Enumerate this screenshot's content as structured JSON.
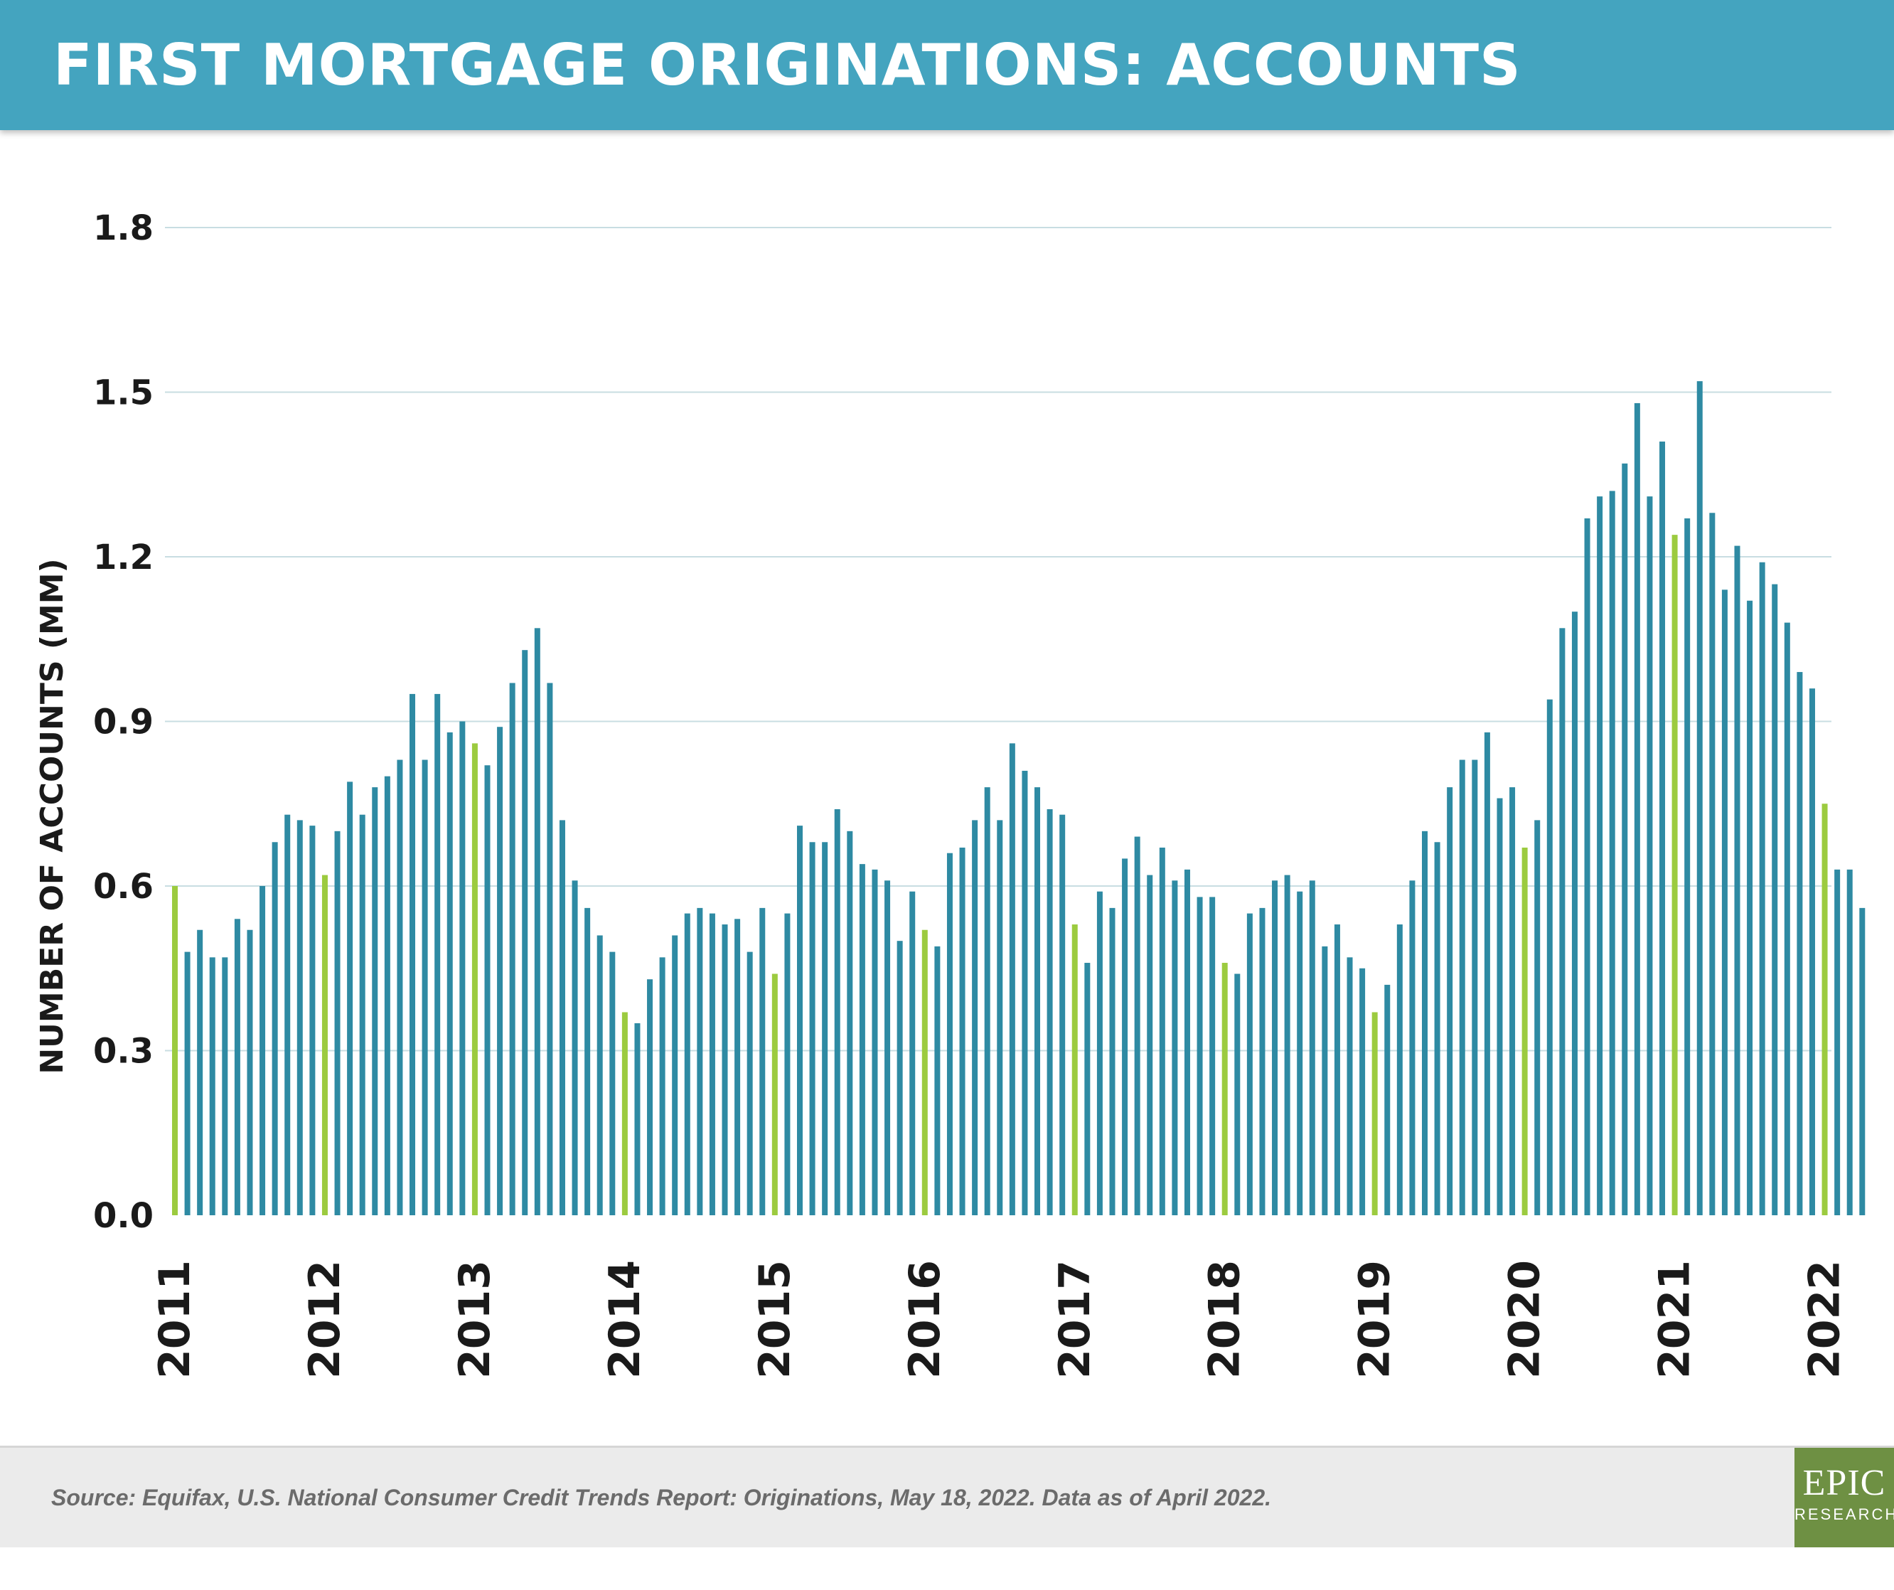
{
  "header": {
    "title": "FIRST MORTGAGE ORIGINATIONS: ACCOUNTS"
  },
  "footer": {
    "source": "Source: Equifax, U.S. National Consumer Credit Trends Report: Originations, May 18, 2022. Data as of April 2022.",
    "logo_main": "EPIC",
    "logo_sub": "RESEARCH"
  },
  "colors": {
    "header": "#44a4bf",
    "bar": "#2e8aa3",
    "highlight": "#9ccb3f",
    "grid": "#c8dde2",
    "logo": "#6e9043"
  },
  "chart_data": {
    "type": "bar",
    "title": "FIRST MORTGAGE ORIGINATIONS: ACCOUNTS",
    "xlabel": "",
    "ylabel": "NUMBER OF ACCOUNTS (MM)",
    "ylim": [
      0,
      1.8
    ],
    "yticks": [
      "0.0",
      "0.3",
      "0.6",
      "0.9",
      "1.2",
      "1.5",
      "1.8"
    ],
    "xticks": [
      "2011",
      "2012",
      "2013",
      "2014",
      "2015",
      "2016",
      "2017",
      "2018",
      "2019",
      "2020",
      "2021",
      "2022"
    ],
    "grid": true,
    "start": "2011-01",
    "end": "2022-04",
    "frequency": "monthly",
    "highlight": "January bars shown in green",
    "values": [
      0.6,
      0.48,
      0.52,
      0.47,
      0.47,
      0.54,
      0.52,
      0.6,
      0.68,
      0.73,
      0.72,
      0.71,
      0.62,
      0.7,
      0.79,
      0.73,
      0.78,
      0.8,
      0.83,
      0.95,
      0.83,
      0.95,
      0.88,
      0.9,
      0.86,
      0.82,
      0.89,
      0.97,
      1.03,
      1.07,
      0.97,
      0.72,
      0.61,
      0.56,
      0.51,
      0.48,
      0.37,
      0.35,
      0.43,
      0.47,
      0.51,
      0.55,
      0.56,
      0.55,
      0.53,
      0.54,
      0.48,
      0.56,
      0.44,
      0.55,
      0.71,
      0.68,
      0.68,
      0.74,
      0.7,
      0.64,
      0.63,
      0.61,
      0.5,
      0.59,
      0.52,
      0.49,
      0.66,
      0.67,
      0.72,
      0.78,
      0.72,
      0.86,
      0.81,
      0.78,
      0.74,
      0.73,
      0.53,
      0.46,
      0.59,
      0.56,
      0.65,
      0.69,
      0.62,
      0.67,
      0.61,
      0.63,
      0.58,
      0.58,
      0.46,
      0.44,
      0.55,
      0.56,
      0.61,
      0.62,
      0.59,
      0.61,
      0.49,
      0.53,
      0.47,
      0.45,
      0.37,
      0.42,
      0.53,
      0.61,
      0.7,
      0.68,
      0.78,
      0.83,
      0.83,
      0.88,
      0.76,
      0.78,
      0.67,
      0.72,
      0.94,
      1.07,
      1.1,
      1.27,
      1.31,
      1.32,
      1.37,
      1.48,
      1.31,
      1.41,
      1.24,
      1.27,
      1.52,
      1.28,
      1.14,
      1.22,
      1.12,
      1.19,
      1.15,
      1.08,
      0.99,
      0.96,
      0.75,
      0.63,
      0.63,
      0.56
    ]
  }
}
